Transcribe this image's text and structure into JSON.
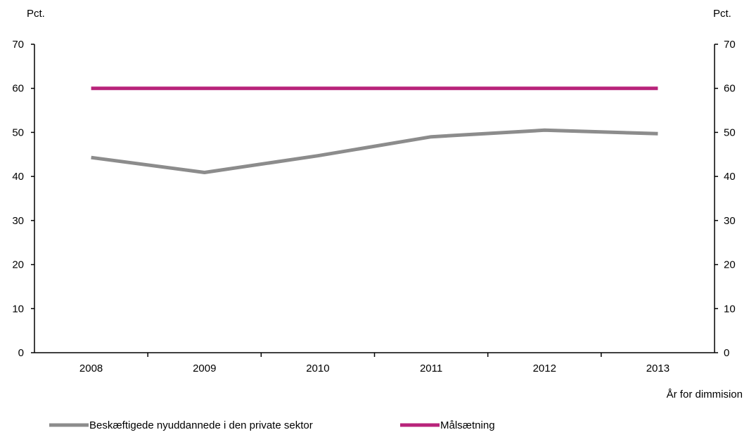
{
  "chart_data": {
    "type": "line",
    "categories": [
      "2008",
      "2009",
      "2010",
      "2011",
      "2012",
      "2013"
    ],
    "series": [
      {
        "name": "Beskæftigede nyuddannede i den private sektor",
        "values": [
          44.3,
          40.9,
          44.7,
          49.0,
          50.5,
          49.7
        ],
        "color": "#8c8c8c"
      },
      {
        "name": "Målsætning",
        "values": [
          60,
          60,
          60,
          60,
          60,
          60
        ],
        "color": "#b8237a"
      }
    ],
    "y_ticks": [
      "0",
      "10",
      "20",
      "30",
      "40",
      "50",
      "60",
      "70"
    ],
    "ylim": [
      0,
      70
    ],
    "ylabel_left": "Pct.",
    "ylabel_right": "Pct.",
    "xlabel": "År for dimmision",
    "grid": false,
    "legend_position": "bottom"
  }
}
